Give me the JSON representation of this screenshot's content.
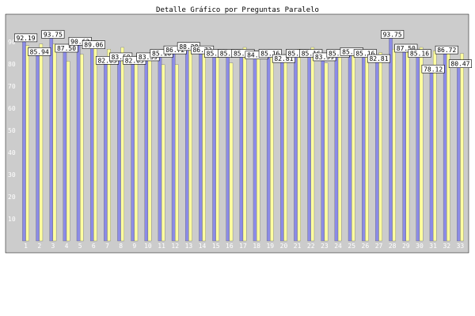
{
  "chart_data": {
    "type": "bar",
    "title": "Detalle Gráfico por Preguntas Paralelo",
    "xlabel": "",
    "ylabel": "",
    "ylim": [
      0,
      100
    ],
    "yticks": [
      10,
      20,
      30,
      40,
      50,
      60,
      70,
      80,
      90
    ],
    "grid": false,
    "legend": "none",
    "categories": [
      "1",
      "2",
      "3",
      "4",
      "5",
      "6",
      "7",
      "8",
      "9",
      "10",
      "11",
      "12",
      "13",
      "14",
      "15",
      "16",
      "17",
      "18",
      "19",
      "20",
      "21",
      "22",
      "23",
      "24",
      "25",
      "26",
      "27",
      "28",
      "29",
      "30",
      "31",
      "32",
      "33"
    ],
    "series": [
      {
        "values": [
          92.19,
          85.94,
          93.75,
          87.5,
          90.62,
          89.06,
          82.03,
          83.59,
          82.03,
          83.59,
          85.16,
          86.72,
          88.28,
          86.72,
          85.16,
          85.16,
          85.16,
          84.38,
          85.16,
          82.81,
          85.16,
          85.16,
          83.59,
          85.16,
          85.94,
          85.16,
          82.81,
          93.75,
          87.5,
          85.16,
          78.12,
          86.72,
          80.47
        ]
      },
      {
        "values": [
          88.28,
          89.06,
          89.06,
          81.25,
          84.38,
          90.62,
          86.72,
          87.5,
          83.59,
          84.38,
          79.69,
          79.69,
          89.06,
          87.5,
          85.94,
          80.47,
          87.5,
          83.59,
          85.94,
          84.38,
          86.72,
          87.5,
          80.47,
          84.38,
          84.38,
          85.94,
          85.16,
          86.72,
          86.72,
          87.5,
          85.94,
          86.72,
          84.77
        ]
      }
    ],
    "colors": [
      "#8c8ce6",
      "#ffffa0"
    ],
    "plot_bg": "#cccccc",
    "label_bg": "#ffffff"
  }
}
